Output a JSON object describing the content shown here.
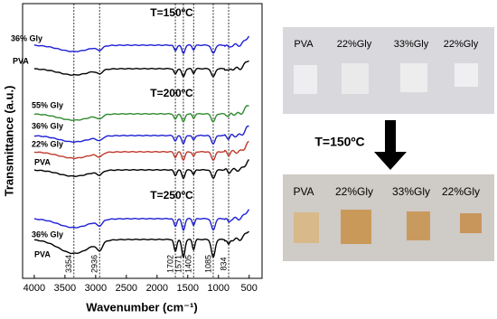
{
  "chart_data": {
    "type": "spectra",
    "xlabel": "Wavenumber (cm⁻¹)",
    "ylabel": "Transmittance (a.u.)",
    "xlim": [
      4190,
      290
    ],
    "xticks": [
      4000,
      3500,
      3000,
      2500,
      2000,
      1500,
      1000,
      500
    ],
    "peaks": [
      3354,
      2936,
      1702,
      1571,
      1405,
      1085,
      834
    ],
    "panel_titles": [
      "T=150ºC",
      "T=200ºC",
      "T=250ºC"
    ],
    "series": [
      {
        "name": "36% Gly",
        "color": "#1f1fd6"
      },
      {
        "name": "PVA",
        "color": "#000000"
      },
      {
        "name": "55% Gly",
        "color": "#2e8b2e"
      },
      {
        "name": "36% Gly",
        "color": "#1f1fd6"
      },
      {
        "name": "22% Gly",
        "color": "#c0392b"
      },
      {
        "name": "PVA",
        "color": "#000000"
      },
      {
        "name": "36% Gly",
        "color": "#1f1fd6"
      },
      {
        "name": "PVA",
        "color": "#000000"
      }
    ]
  },
  "photos": {
    "before": [
      "PVA",
      "22%Gly",
      "33%Gly",
      "22%Gly"
    ],
    "condition": "T=150ºC",
    "after": [
      "PVA",
      "22%Gly",
      "33%Gly",
      "22%Gly"
    ]
  }
}
